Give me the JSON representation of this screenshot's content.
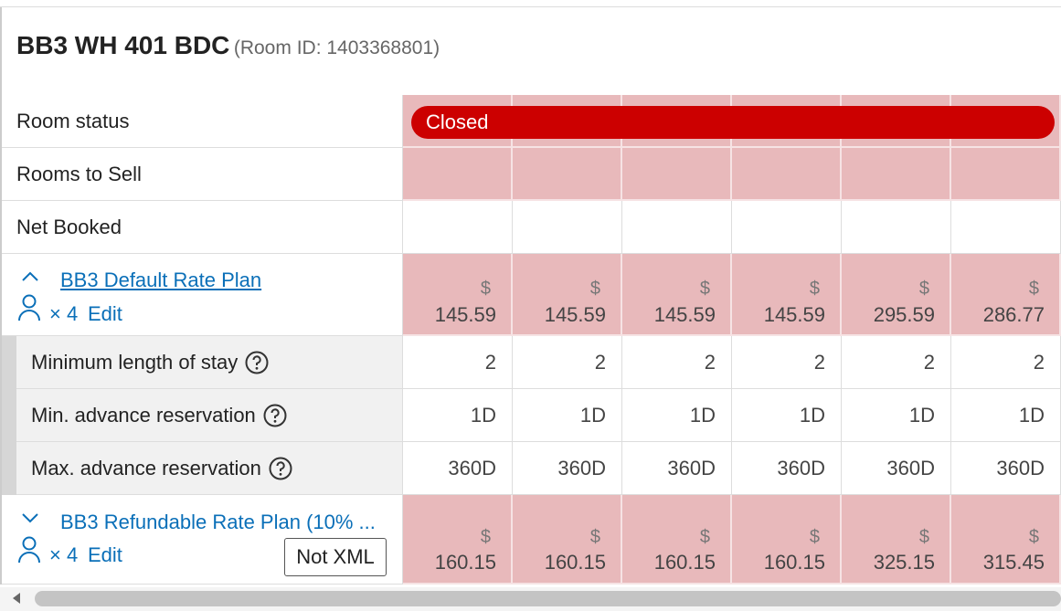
{
  "header": {
    "title": "BB3 WH 401 BDC",
    "subtitle": "(Room ID: 1403368801)"
  },
  "rows": {
    "room_status": {
      "label": "Room status",
      "status": "Closed"
    },
    "rooms_to_sell": {
      "label": "Rooms to Sell"
    },
    "net_booked": {
      "label": "Net Booked"
    }
  },
  "currency": "$",
  "rate_plans": [
    {
      "name": "BB3 Default Rate Plan",
      "occupancy": "× 4",
      "edit": "Edit",
      "prices": [
        145.59,
        145.59,
        145.59,
        145.59,
        295.59,
        286.77
      ],
      "restrictions": [
        {
          "label": "Minimum length of stay",
          "values": [
            2,
            2,
            2,
            2,
            2,
            2
          ]
        },
        {
          "label": "Min. advance reservation",
          "values": [
            "1D",
            "1D",
            "1D",
            "1D",
            "1D",
            "1D"
          ]
        },
        {
          "label": "Max. advance reservation",
          "values": [
            "360D",
            "360D",
            "360D",
            "360D",
            "360D",
            "360D"
          ]
        }
      ]
    },
    {
      "name": "BB3 Refundable Rate Plan (10% ...",
      "occupancy": "× 4",
      "edit": "Edit",
      "badge": "Not XML",
      "prices": [
        160.15,
        160.15,
        160.15,
        160.15,
        325.15,
        315.45
      ]
    }
  ]
}
